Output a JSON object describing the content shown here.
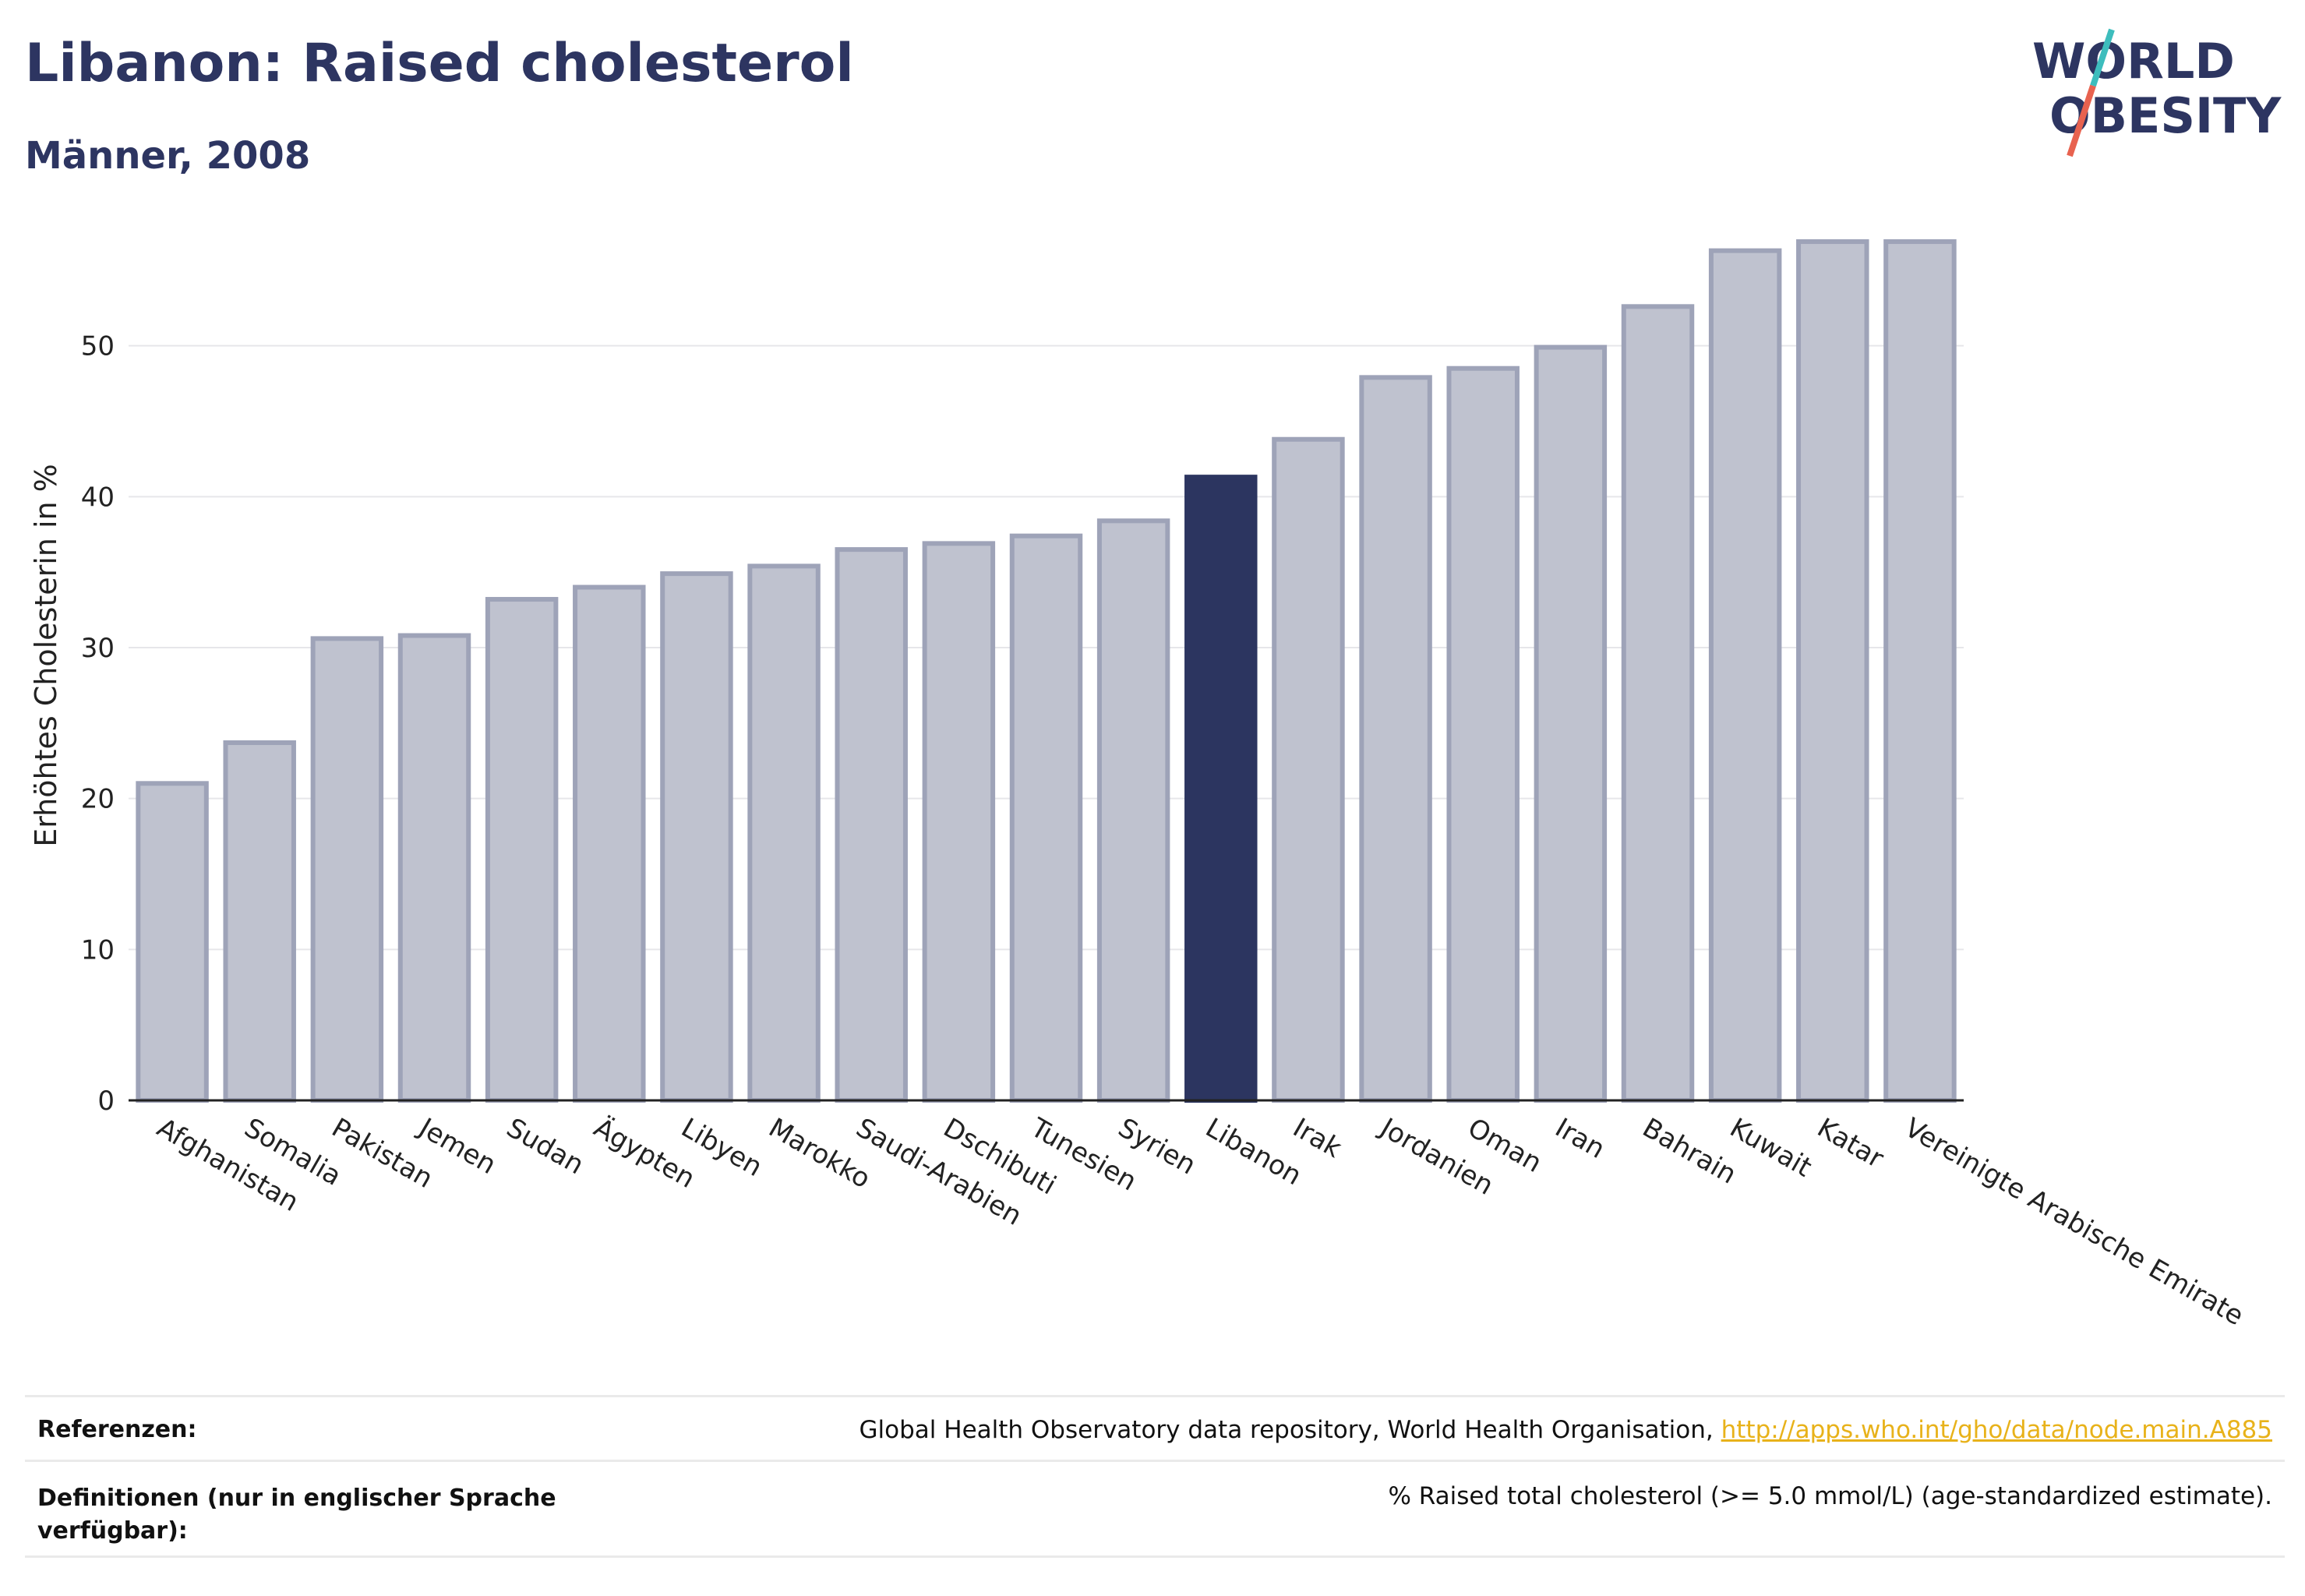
{
  "header": {
    "title": "Libanon: Raised cholesterol",
    "subtitle": "Männer, 2008"
  },
  "logo": {
    "line1": "WORLD",
    "line2": "OBESITY",
    "accent_colors": [
      "#3dbdbd",
      "#e8624f"
    ]
  },
  "chart_data": {
    "type": "bar",
    "categories": [
      "Afghanistan",
      "Somalia",
      "Pakistan",
      "Jemen",
      "Sudan",
      "Ägypten",
      "Libyen",
      "Marokko",
      "Saudi-Arabien",
      "Dschibuti",
      "Tunesien",
      "Syrien",
      "Libanon",
      "Irak",
      "Jordanien",
      "Oman",
      "Iran",
      "Bahrain",
      "Kuwait",
      "Katar",
      "Vereinigte Arabische Emirate"
    ],
    "values": [
      21.0,
      23.7,
      30.6,
      30.8,
      33.2,
      34.0,
      34.9,
      35.4,
      36.5,
      36.9,
      37.4,
      38.4,
      41.3,
      43.8,
      47.9,
      48.5,
      49.9,
      52.6,
      56.3,
      56.9,
      56.9
    ],
    "highlight": "Libanon",
    "ylabel": "Erhöhtes Cholesterin in %",
    "xlabel": "",
    "ylim": [
      0,
      60
    ],
    "yticks": [
      0,
      10,
      20,
      30,
      40,
      50
    ],
    "grid": true,
    "colors": {
      "bar_fill": "#bfc2cf",
      "bar_stroke": "#9ea3b8",
      "highlight": "#2c3560"
    }
  },
  "references": {
    "label": "Referenzen:",
    "text": "Global Health Observatory data repository, World Health Organisation, ",
    "link": "http://apps.who.int/gho/data/node.main.A885"
  },
  "definitions": {
    "label": "Definitionen (nur in englischer Sprache verfügbar):",
    "text": "% Raised total cholesterol (>= 5.0 mmol/L) (age-standardized estimate)."
  }
}
